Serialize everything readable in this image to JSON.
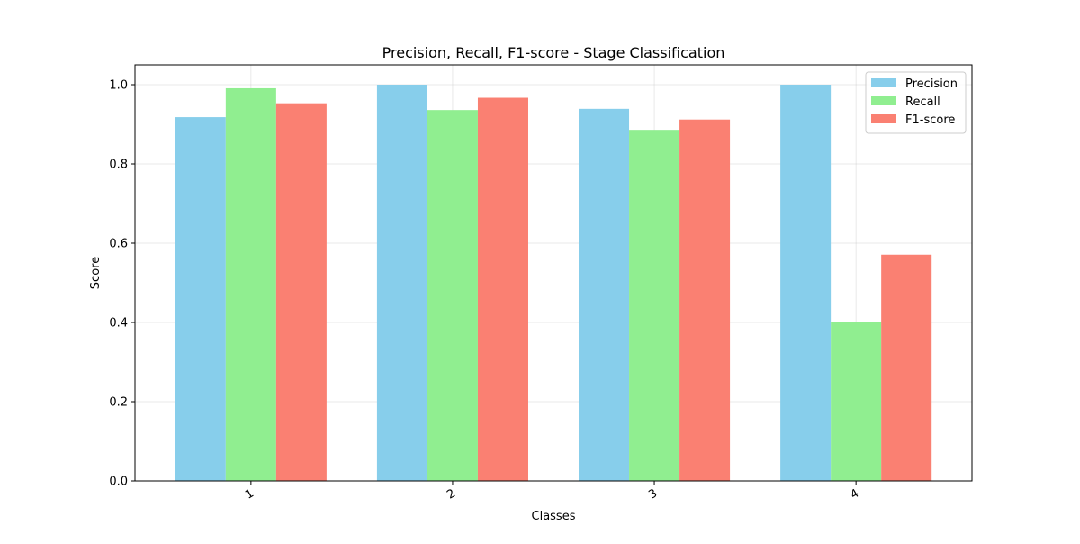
{
  "chart_data": {
    "type": "bar",
    "title": "Precision, Recall, F1-score - Stage Classification",
    "xlabel": "Classes",
    "ylabel": "Score",
    "categories": [
      "1",
      "2",
      "3",
      "4"
    ],
    "series": [
      {
        "name": "Precision",
        "color": "#87CEEB",
        "values": [
          0.918,
          1.0,
          0.939,
          1.0
        ]
      },
      {
        "name": "Recall",
        "color": "#90EE90",
        "values": [
          0.991,
          0.936,
          0.886,
          0.4
        ]
      },
      {
        "name": "F1-score",
        "color": "#FA8072",
        "values": [
          0.953,
          0.967,
          0.912,
          0.571
        ]
      }
    ],
    "ylim": [
      0,
      1.05
    ],
    "yticks": [
      0.0,
      0.2,
      0.4,
      0.6,
      0.8,
      1.0
    ],
    "ytick_labels": [
      "0.0",
      "0.2",
      "0.4",
      "0.6",
      "0.8",
      "1.0"
    ],
    "xtick_rotation_deg": 30,
    "grid": true,
    "legend_position": "top-right"
  }
}
